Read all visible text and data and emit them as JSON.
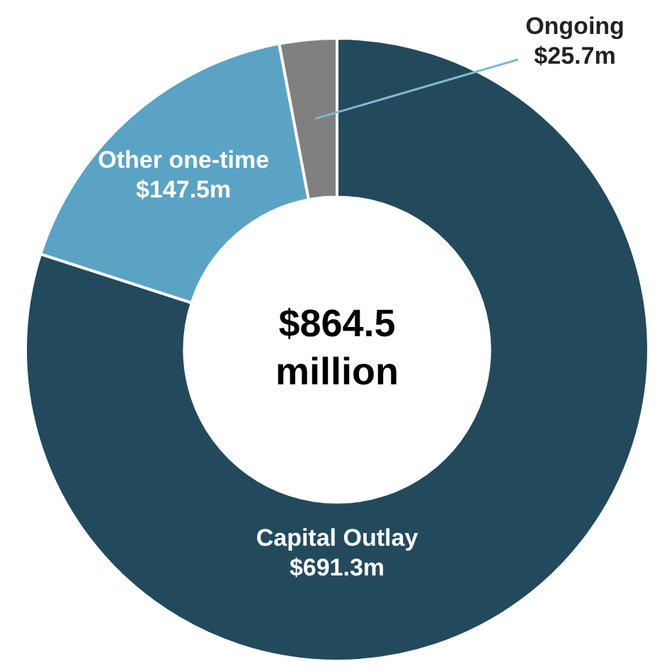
{
  "chart_data": {
    "type": "donut",
    "categories": [
      "Capital Outlay",
      "Other one-time",
      "Ongoing"
    ],
    "values": [
      691.3,
      147.5,
      25.7
    ],
    "colors": [
      "#234a5c",
      "#5ba3c4",
      "#808080"
    ],
    "value_labels": [
      "$691.3m",
      "$147.5m",
      "$25.7m"
    ],
    "annotations": [
      "$864.5 million"
    ],
    "legend": false
  }
}
